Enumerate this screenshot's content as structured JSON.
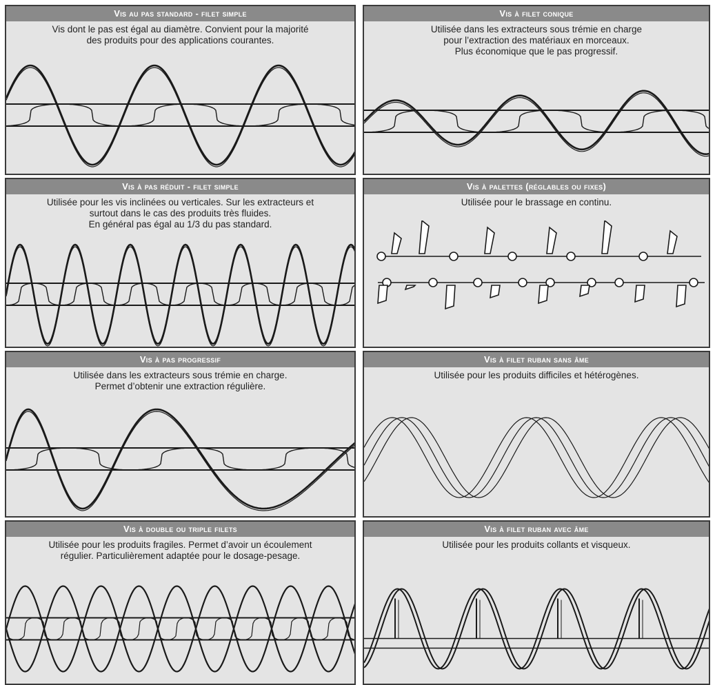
{
  "colors": {
    "header_bg": "#8a8a8a",
    "panel_bg": "#e4e4e4",
    "border": "#3a3a3a",
    "line": "#1a1a1a"
  },
  "panels": [
    {
      "id": "standard",
      "title": "Vis au pas standard - filet simple",
      "desc": [
        "Vis dont le pas est égal au diamètre. Convient pour la majorité",
        "des produits pour des applications courantes."
      ]
    },
    {
      "id": "conique",
      "title": "Vis à filet conique",
      "desc": [
        "Utilisée dans les extracteurs sous trémie en charge",
        "pour l’extraction des matériaux en morceaux.",
        "Plus économique que le pas progressif."
      ]
    },
    {
      "id": "reduit",
      "title": "Vis à pas réduit - filet simple",
      "desc": [
        "Utilisée pour les vis inclinées ou verticales. Sur les extracteurs et",
        "surtout dans le cas des produits très fluides.",
        "En général pas égal au 1/3 du pas standard."
      ]
    },
    {
      "id": "palettes",
      "title": "Vis à palettes (réglables ou fixes)",
      "desc": [
        "Utilisée pour le brassage en continu."
      ]
    },
    {
      "id": "progressif",
      "title": "Vis à pas progressif",
      "desc": [
        "Utilisée dans les extracteurs sous trémie en charge.",
        "Permet d’obtenir une extraction régulière."
      ]
    },
    {
      "id": "ruban-sans-ame",
      "title": "Vis à filet ruban sans âme",
      "desc": [
        "Utilisée pour les produits difficiles et hétérogènes."
      ]
    },
    {
      "id": "double-triple",
      "title": "Vis à double ou triple filets",
      "desc": [
        "Utilisée pour les produits fragiles. Permet d’avoir un écoulement",
        "régulier. Particulièrement adaptée pour le dosage-pesage."
      ]
    },
    {
      "id": "ruban-avec-ame",
      "title": "Vis à filet ruban avec âme",
      "desc": [
        "Utilisée pour les produits collants et visqueux."
      ]
    }
  ]
}
